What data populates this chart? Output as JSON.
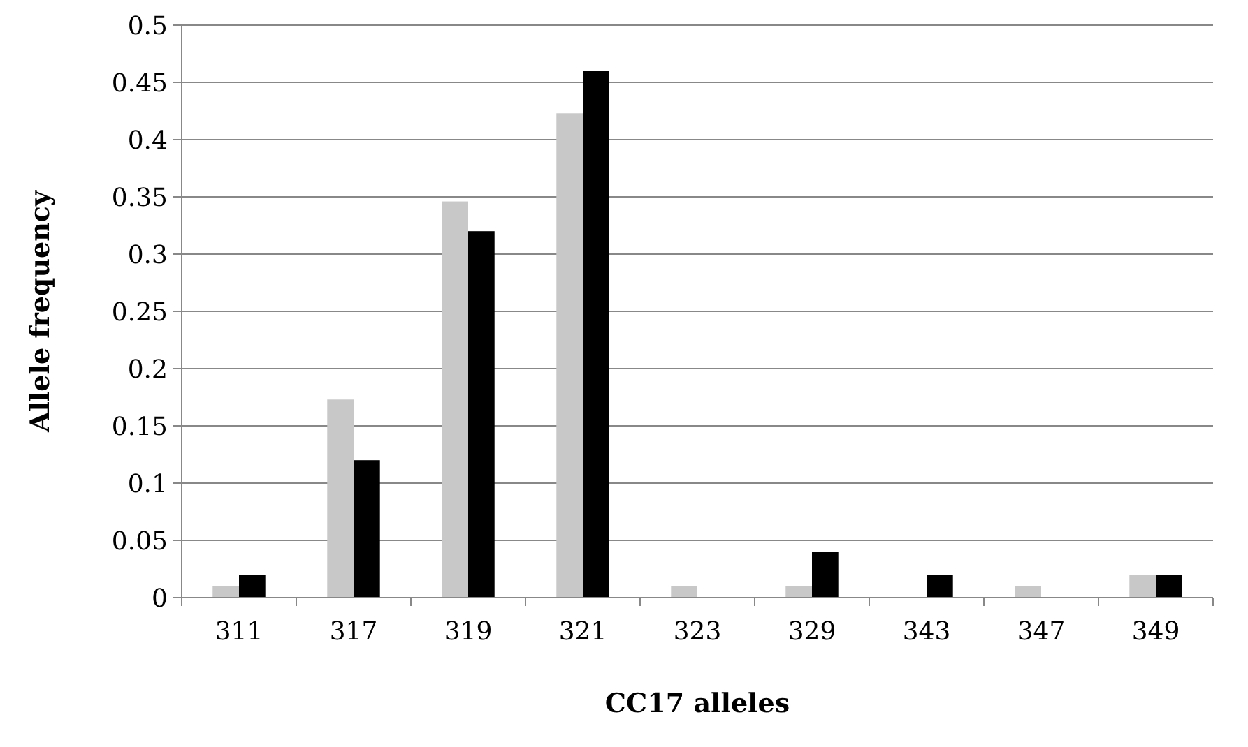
{
  "chart_data": {
    "type": "bar",
    "xlabel": "CC17 alleles",
    "ylabel": "Allele frequency",
    "categories": [
      "311",
      "317",
      "319",
      "321",
      "323",
      "329",
      "343",
      "347",
      "349"
    ],
    "series": [
      {
        "color": "#c8c8c8",
        "values": [
          0.01,
          0.173,
          0.346,
          0.423,
          0.01,
          0.01,
          0,
          0.01,
          0.02
        ]
      },
      {
        "color": "#000000",
        "values": [
          0.02,
          0.12,
          0.32,
          0.46,
          0,
          0.04,
          0.02,
          0,
          0.02
        ]
      }
    ],
    "ylim": [
      0,
      0.5
    ],
    "yticks": [
      {
        "value": 0,
        "label": "0"
      },
      {
        "value": 0.05,
        "label": "0.05"
      },
      {
        "value": 0.1,
        "label": "0.1"
      },
      {
        "value": 0.15,
        "label": "0.15"
      },
      {
        "value": 0.2,
        "label": "0.2"
      },
      {
        "value": 0.25,
        "label": "0.25"
      },
      {
        "value": 0.3,
        "label": "0.3"
      },
      {
        "value": 0.35,
        "label": "0.35"
      },
      {
        "value": 0.4,
        "label": "0.4"
      },
      {
        "value": 0.45,
        "label": "0.45"
      },
      {
        "value": 0.5,
        "label": "0.5"
      }
    ],
    "grid": "y"
  }
}
